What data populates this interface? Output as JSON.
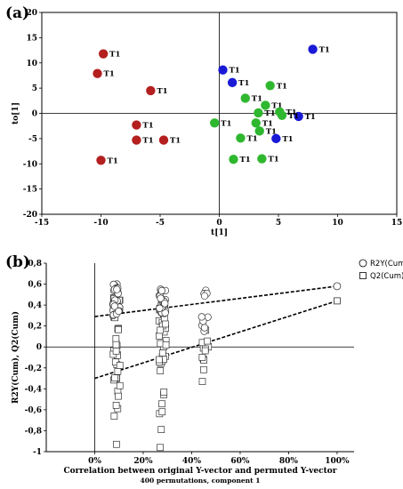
{
  "chart_data": [
    {
      "type": "scatter",
      "panel_label": "(a)",
      "title": "",
      "xlabel": "t[1]",
      "ylabel": "to[1]",
      "xlim": [
        -15,
        15
      ],
      "ylim": [
        -20,
        20
      ],
      "xticks": [
        -15,
        -10,
        -5,
        0,
        5,
        10,
        15
      ],
      "yticks": [
        -20,
        -15,
        -10,
        -5,
        0,
        5,
        10,
        15,
        20
      ],
      "point_label": "T1",
      "colors": {
        "red": "#b41f1f",
        "blue": "#1a1ad6",
        "green": "#2fb82f"
      },
      "series": [
        {
          "color": "red",
          "points": [
            [
              -9.8,
              11.8
            ],
            [
              -10.3,
              7.9
            ],
            [
              -5.8,
              4.5
            ],
            [
              -7.0,
              -2.3
            ],
            [
              -7.0,
              -5.3
            ],
            [
              -4.7,
              -5.3
            ],
            [
              -10.0,
              -9.3
            ]
          ]
        },
        {
          "color": "blue",
          "points": [
            [
              7.9,
              12.7
            ],
            [
              0.3,
              8.6
            ],
            [
              1.1,
              6.1
            ],
            [
              6.7,
              -0.6
            ],
            [
              4.8,
              -5.0
            ]
          ]
        },
        {
          "color": "green",
          "points": [
            [
              4.3,
              5.5
            ],
            [
              2.2,
              3.0
            ],
            [
              3.9,
              1.6
            ],
            [
              5.1,
              0.3
            ],
            [
              3.3,
              0.1
            ],
            [
              5.3,
              -0.4
            ],
            [
              -0.4,
              -1.9
            ],
            [
              3.1,
              -1.9
            ],
            [
              3.4,
              -3.5
            ],
            [
              1.8,
              -4.9
            ],
            [
              1.2,
              -9.1
            ],
            [
              3.6,
              -9.0
            ]
          ]
        }
      ]
    },
    {
      "type": "scatter",
      "panel_label": "(b)",
      "title": "",
      "xlabel": "Correlation between original Y-vector and permuted Y-vector",
      "subtitle": "400 permutations, component 1",
      "ylabel": "R2Y(Cum), Q2(Cum)",
      "xlim": [
        -0.2,
        1.07
      ],
      "ylim": [
        -1,
        0.8
      ],
      "xticks": [
        0,
        0.2,
        0.4,
        0.6,
        0.8,
        1.0
      ],
      "xtick_labels": [
        "0%",
        "20%",
        "40%",
        "60%",
        "80%",
        "100%"
      ],
      "yticks": [
        -1,
        -0.8,
        -0.6,
        -0.4,
        -0.2,
        0,
        0.2,
        0.4,
        0.6,
        0.8
      ],
      "ytick_labels": [
        "-1",
        "-0,8",
        "-0,6",
        "-0,4",
        "-0,2",
        "0",
        "0,2",
        "0,4",
        "0,6",
        "0,8"
      ],
      "legend": [
        {
          "name": "R2Y(Cum)",
          "marker": "circle"
        },
        {
          "name": "Q2(Cum)",
          "marker": "square"
        }
      ],
      "legend_position": "top-right",
      "original": {
        "x": 1.0,
        "r2y": 0.58,
        "q2": 0.44
      },
      "permutation_clusters": [
        {
          "x": 0.09,
          "r2y_range": [
            0.3,
            0.6
          ],
          "q2_range": [
            -0.93,
            0.47
          ]
        },
        {
          "x": 0.28,
          "r2y_range": [
            0.32,
            0.55
          ],
          "q2_range": [
            -0.96,
            0.45
          ]
        },
        {
          "x": 0.455,
          "r2y_range": [
            0.15,
            0.54
          ],
          "q2_range": [
            -0.33,
            0.16
          ]
        }
      ],
      "regression_lines": [
        {
          "name": "R2Y(Cum)",
          "intercept": 0.29,
          "end": [
            1.0,
            0.58
          ]
        },
        {
          "name": "Q2(Cum)",
          "intercept": -0.3,
          "end": [
            1.0,
            0.44
          ]
        }
      ]
    }
  ]
}
